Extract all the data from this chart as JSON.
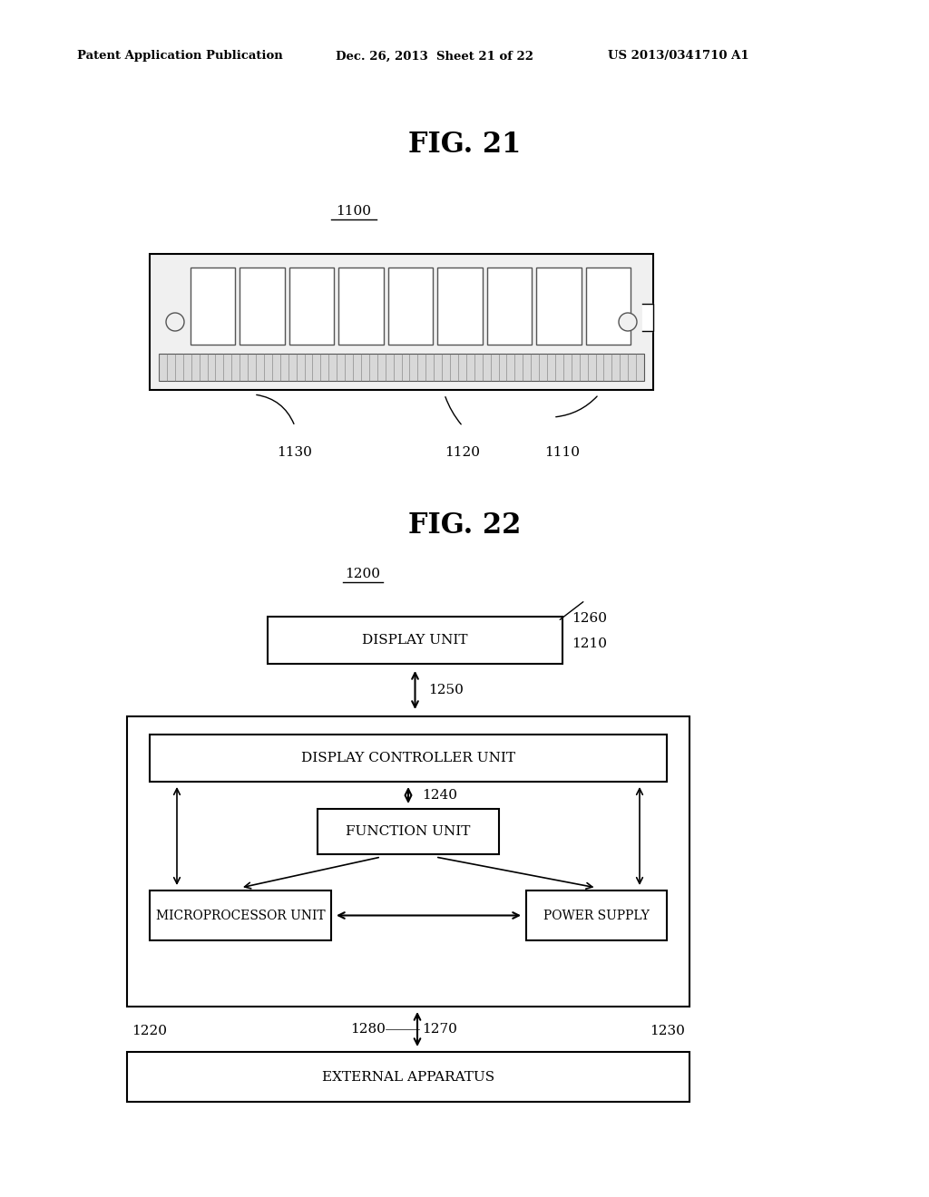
{
  "bg_color": "#ffffff",
  "header_left": "Patent Application Publication",
  "header_mid": "Dec. 26, 2013  Sheet 21 of 22",
  "header_right": "US 2013/0341710 A1",
  "fig21_title": "FIG. 21",
  "fig22_title": "FIG. 22",
  "label_1100": "1100",
  "label_1110": "1110",
  "label_1120": "1120",
  "label_1130": "1130",
  "label_1200": "1200",
  "label_1210": "1210",
  "label_1220": "1220",
  "label_1230": "1230",
  "label_1240": "1240",
  "label_1250": "1250",
  "label_1260": "1260",
  "label_1270": "1270",
  "label_1280": "1280",
  "box_display_unit": "DISPLAY UNIT",
  "box_display_controller": "DISPLAY CONTROLLER UNIT",
  "box_function_unit": "FUNCTION UNIT",
  "box_microprocessor": "MICROPROCESSOR UNIT",
  "box_power_supply": "POWER SUPPLY",
  "box_external": "EXTERNAL APPARATUS"
}
